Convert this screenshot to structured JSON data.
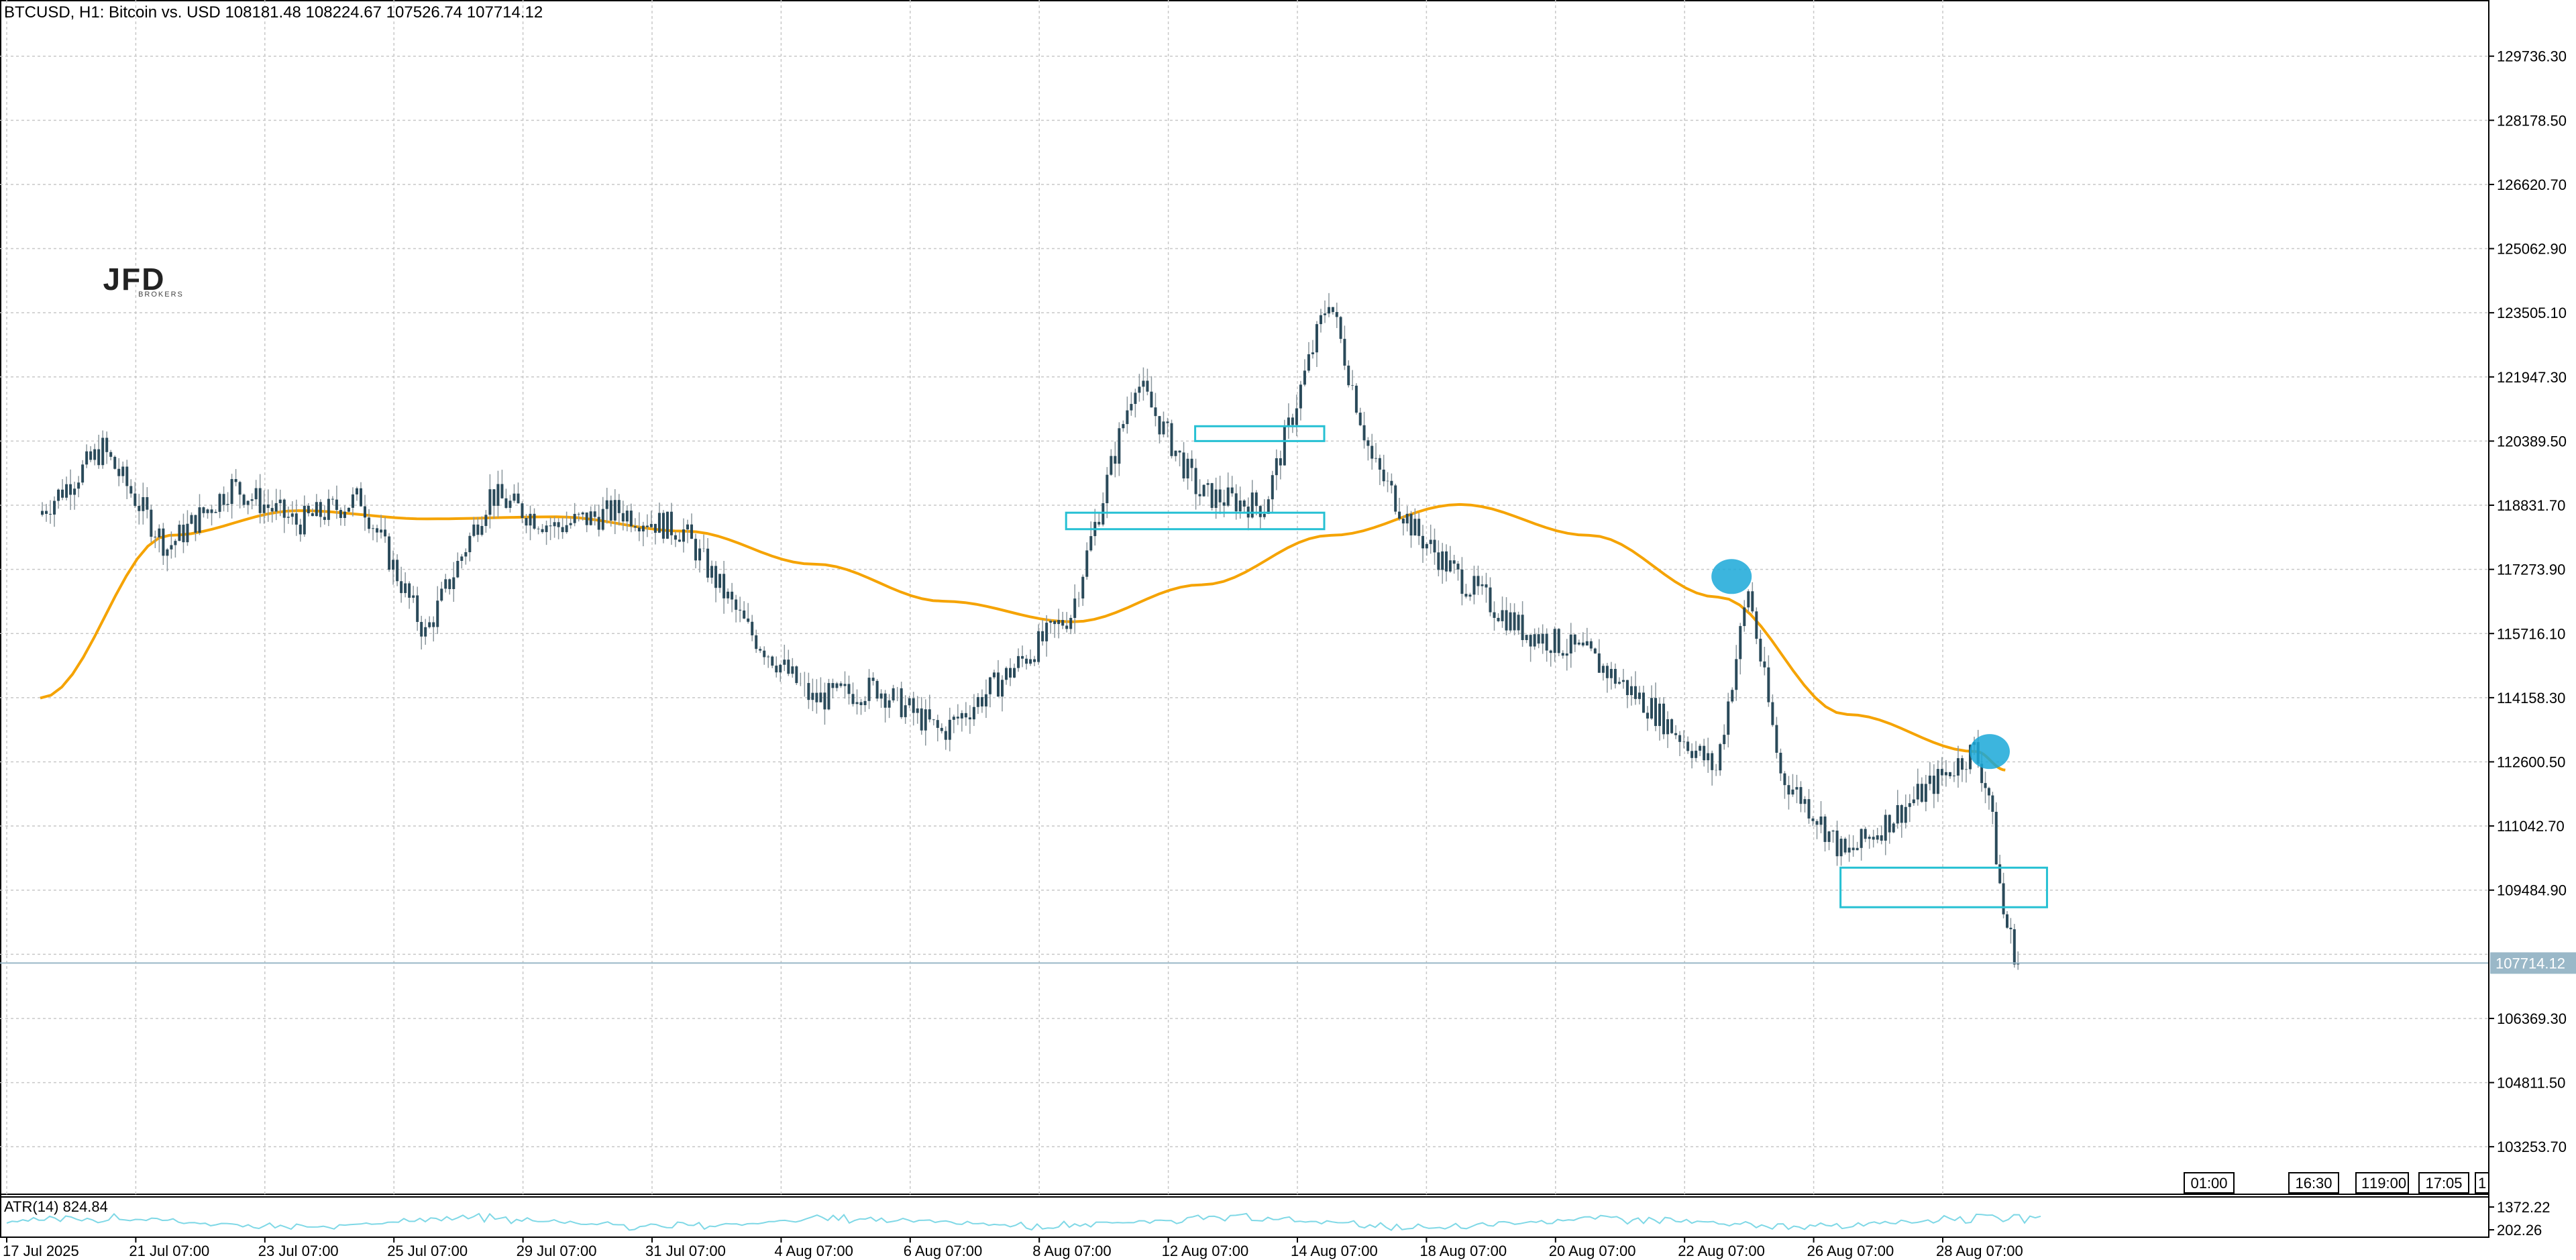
{
  "header": {
    "symbol": "BTCUSD",
    "timeframe": "H1:",
    "description": "Bitcoin vs. USD",
    "ohlc": "108181.48 108224.67 107526.74 107714.12"
  },
  "logo": {
    "text": "JFD",
    "subtext": "BROKERS"
  },
  "price_axis": {
    "labels": [
      "129736.30",
      "128178.50",
      "126620.70",
      "125062.90",
      "123505.10",
      "121947.30",
      "120389.50",
      "118831.70",
      "117273.90",
      "115716.10",
      "114158.30",
      "112600.50",
      "111042.70",
      "109484.90",
      "106369.30",
      "104811.50",
      "103253.70"
    ],
    "current_price": "107714.12"
  },
  "time_axis": {
    "labels": [
      "17 Jul 2025",
      "21 Jul 07:00",
      "23 Jul 07:00",
      "25 Jul 07:00",
      "29 Jul 07:00",
      "31 Jul 07:00",
      "4 Aug 07:00",
      "6 Aug 07:00",
      "8 Aug 07:00",
      "12 Aug 07:00",
      "14 Aug 07:00",
      "18 Aug 07:00",
      "20 Aug 07:00",
      "22 Aug 07:00",
      "26 Aug 07:00",
      "28 Aug 07:00"
    ]
  },
  "time_boxes": [
    "01:00",
    "16:30",
    "1",
    "19:00",
    "17:05",
    "1"
  ],
  "indicator": {
    "label": "ATR(14) 824.84",
    "scale_labels": [
      "1372.22",
      "202.26"
    ]
  },
  "colors": {
    "candle": "#2a4a5a",
    "moving_average": "#f5a300",
    "zone": "#26c0d3",
    "marker": "#1aa8d8",
    "atr": "#7fd8e6",
    "price_tag": "#9ab8c8",
    "grid": "#c8c8c8"
  },
  "chart_data": {
    "type": "candlestick",
    "title": "BTCUSD, H1: Bitcoin vs. USD",
    "ylim": [
      102100,
      131100
    ],
    "grid": true,
    "moving_average": {
      "x": [
        "17 Jul 2025",
        "21 Jul 07:00",
        "23 Jul 07:00",
        "25 Jul 07:00",
        "29 Jul 07:00",
        "31 Jul 07:00",
        "4 Aug 07:00",
        "6 Aug 07:00",
        "8 Aug 07:00",
        "12 Aug 07:00",
        "14 Aug 07:00",
        "18 Aug 07:00",
        "20 Aug 07:00",
        "22 Aug 07:00",
        "26 Aug 07:00",
        "28 Aug 07:00",
        "29 Aug"
      ],
      "values": [
        114150,
        118100,
        118700,
        118500,
        118550,
        118200,
        117400,
        116500,
        116000,
        116900,
        118100,
        118850,
        118100,
        116600,
        113750,
        112850,
        112400
      ]
    },
    "price_path": {
      "x": [
        "17 Jul 2025",
        "19 Jul",
        "21 Jul 07:00",
        "22 Jul",
        "23 Jul 07:00",
        "24 Jul",
        "25 Jul 07:00",
        "26 Jul",
        "29 Jul 07:00",
        "30 Jul",
        "31 Jul 07:00",
        "1 Aug",
        "4 Aug 07:00",
        "5 Aug",
        "6 Aug 07:00",
        "7 Aug",
        "8 Aug 07:00",
        "8 Aug 12:00",
        "12 Aug 07:00",
        "13 Aug",
        "14 Aug 07:00",
        "14 Aug 12:00",
        "15 Aug",
        "18 Aug 07:00",
        "19 Aug",
        "20 Aug 07:00",
        "21 Aug",
        "22 Aug 07:00",
        "22 Aug 12:00",
        "23 Aug",
        "25 Aug",
        "26 Aug 07:00",
        "27 Aug",
        "28 Aug 07:00",
        "28 Aug 18:00",
        "29 Aug",
        "29 Aug 06:00"
      ],
      "values": [
        118600,
        120200,
        117800,
        119300,
        118400,
        119000,
        115700,
        119100,
        118300,
        118700,
        118200,
        115800,
        114100,
        114400,
        113300,
        114700,
        116200,
        121900,
        119100,
        118800,
        123900,
        119900,
        118200,
        117100,
        115800,
        115200,
        113900,
        112400,
        116800,
        112300,
        111400,
        110300,
        111600,
        112900,
        111800,
        108900,
        107714
      ]
    },
    "annotations": [
      {
        "kind": "zone",
        "x": [
          "12 Aug 07:00",
          "14 Aug 07:00"
        ],
        "y": [
          120390,
          120750
        ]
      },
      {
        "kind": "zone",
        "x": [
          "8 Aug 07:00",
          "14 Aug 07:00"
        ],
        "y": [
          118250,
          118650
        ]
      },
      {
        "kind": "zone",
        "x": [
          "26 Aug 07:00",
          "28 Aug 18:00"
        ],
        "y": [
          109070,
          110030
        ]
      },
      {
        "kind": "marker",
        "x": "22 Aug 07:00",
        "y": 117100
      },
      {
        "kind": "marker",
        "x": "28 Aug 07:00",
        "y": 112850
      }
    ],
    "atr": {
      "label": "ATR(14)",
      "last": 824.84,
      "range": [
        202.26,
        1372.22
      ]
    }
  }
}
